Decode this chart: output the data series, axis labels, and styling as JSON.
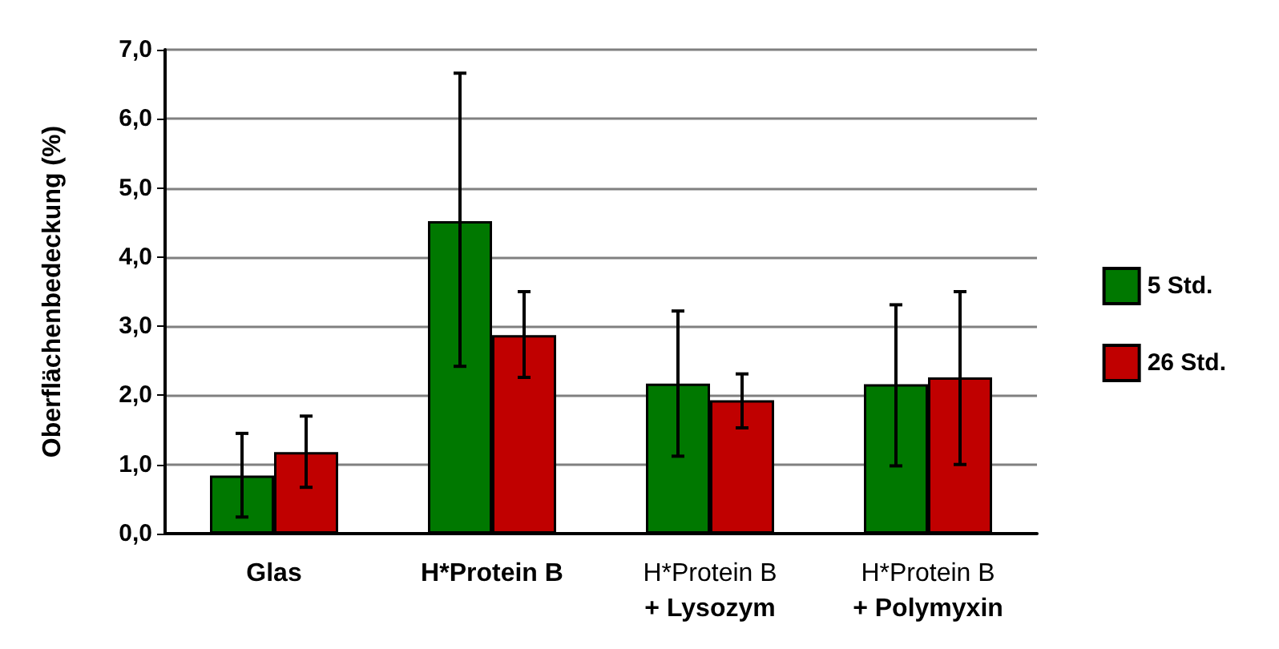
{
  "chart_data": {
    "type": "bar",
    "ylabel": "Oberflächenbedeckung (%)",
    "categories": [
      "Glas",
      "H*Protein B",
      "H*Protein B\n+ Lysozym",
      "H*Protein B\n+ Polymyxin"
    ],
    "series": [
      {
        "name": "5 Std.",
        "color": "#007800",
        "values": [
          0.84,
          4.52,
          2.17,
          2.16
        ],
        "errors": [
          [
            0.24,
            1.45
          ],
          [
            2.42,
            6.66
          ],
          [
            1.12,
            3.22
          ],
          [
            0.98,
            3.31
          ]
        ]
      },
      {
        "name": "26 Std.",
        "color": "#c00000",
        "values": [
          1.18,
          2.87,
          1.93,
          2.26
        ],
        "errors": [
          [
            0.67,
            1.7
          ],
          [
            2.26,
            3.5
          ],
          [
            1.53,
            2.31
          ],
          [
            1.0,
            3.5
          ]
        ]
      }
    ],
    "ylim": [
      0,
      7
    ],
    "yticks": [
      {
        "value": 0,
        "label": "0,0"
      },
      {
        "value": 1,
        "label": "1,0"
      },
      {
        "value": 2,
        "label": "2,0"
      },
      {
        "value": 3,
        "label": "3,0"
      },
      {
        "value": 4,
        "label": "4,0"
      },
      {
        "value": 5,
        "label": "5,0"
      },
      {
        "value": 6,
        "label": "6,0"
      },
      {
        "value": 7,
        "label": "7,0"
      }
    ],
    "grid": "y",
    "legend": "right"
  }
}
